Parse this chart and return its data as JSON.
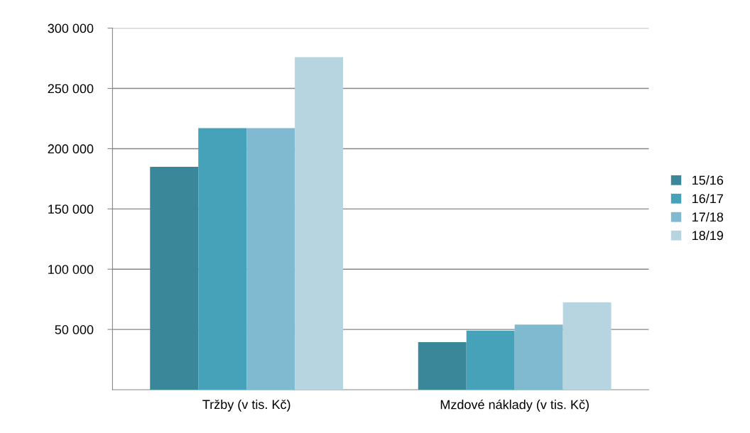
{
  "chart_data": {
    "type": "bar",
    "categories": [
      "Tržby (v tis. Kč)",
      "Mzdové náklady (v tis. Kč)"
    ],
    "series": [
      {
        "name": "15/16",
        "color": "#3a8799",
        "values": [
          185000,
          39500
        ]
      },
      {
        "name": "16/17",
        "color": "#46a2b9",
        "values": [
          217000,
          49000
        ]
      },
      {
        "name": "17/18",
        "color": "#7fbad0",
        "values": [
          217000,
          54000
        ]
      },
      {
        "name": "18/19",
        "color": "#b7d5e0",
        "values": [
          276000,
          72500
        ]
      }
    ],
    "ylim": [
      0,
      300000
    ],
    "yticks": [
      {
        "value": 50000,
        "label": "50 000"
      },
      {
        "value": 100000,
        "label": "100 000"
      },
      {
        "value": 150000,
        "label": "150 000"
      },
      {
        "value": 200000,
        "label": "200 000"
      },
      {
        "value": 250000,
        "label": "250 000"
      },
      {
        "value": 300000,
        "label": "300 000"
      }
    ],
    "grid": "y",
    "legend": "right"
  }
}
